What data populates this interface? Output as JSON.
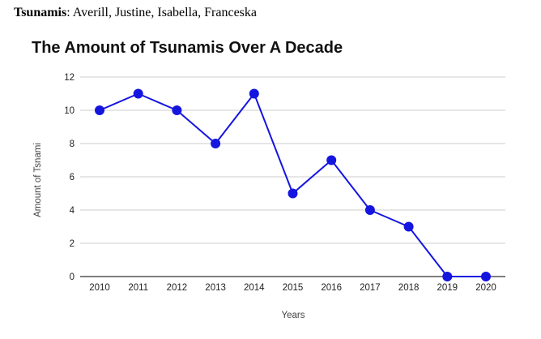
{
  "header": {
    "topic_label": "Tsunamis",
    "separator": ":",
    "members": " Averill, Justine, Isabella, Franceska"
  },
  "colors": {
    "series": "#1515e0",
    "grid": "#cccccc",
    "axis": "#333333"
  },
  "chart_data": {
    "type": "line",
    "title": "The Amount of Tsunamis Over A Decade",
    "xlabel": "Years",
    "ylabel": "Amount of Tsnami",
    "categories": [
      "2010",
      "2011",
      "2012",
      "2013",
      "2014",
      "2015",
      "2016",
      "2017",
      "2018",
      "2019",
      "2020"
    ],
    "series": [
      {
        "values": [
          10,
          11,
          10,
          8,
          11,
          5,
          7,
          4,
          3,
          0,
          0
        ]
      }
    ],
    "ylim": [
      0,
      12
    ],
    "yticks": [
      0,
      2,
      4,
      6,
      8,
      10,
      12
    ],
    "grid": true,
    "legend": "none"
  }
}
